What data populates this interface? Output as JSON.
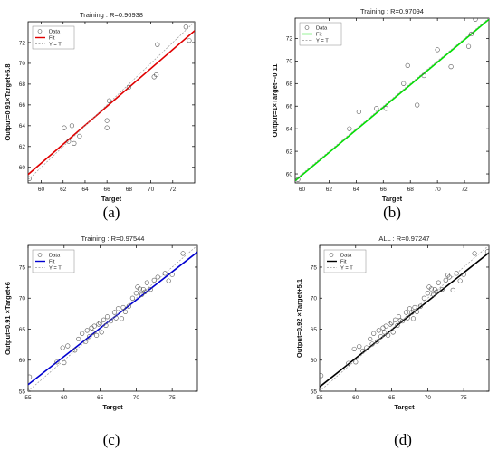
{
  "chart_data": [
    {
      "type": "scatter",
      "panel_label": "(a)",
      "title": "Training : R=0.96938",
      "xlabel": "Target",
      "ylabel": "Output=0.91×Target+5.8",
      "xlim": [
        58.8,
        74.0
      ],
      "ylim": [
        58.5,
        74.0
      ],
      "xticks": [
        60,
        62,
        64,
        66,
        68,
        70,
        72
      ],
      "yticks": [
        60,
        62,
        64,
        66,
        68,
        70,
        72
      ],
      "grid": false,
      "legend_position": "top-left",
      "series": [
        {
          "name": "Data",
          "kind": "points",
          "color": "#555555",
          "x": [
            58.9,
            62.1,
            62.5,
            62.8,
            63.0,
            63.5,
            66.0,
            66.0,
            66.2,
            68.0,
            70.3,
            70.5,
            70.6,
            73.2,
            73.5
          ],
          "y": [
            58.9,
            63.8,
            62.5,
            64.0,
            62.3,
            63.0,
            64.5,
            63.8,
            66.4,
            67.7,
            68.7,
            68.9,
            71.8,
            73.5,
            72.2
          ]
        },
        {
          "name": "Fit",
          "kind": "line",
          "color": "#e00000",
          "slope": 0.91,
          "intercept": 5.8
        },
        {
          "name": "Y = T",
          "kind": "line",
          "color": "#9a9a9a",
          "dashed": true,
          "slope": 1,
          "intercept": 0
        }
      ]
    },
    {
      "type": "scatter",
      "panel_label": "(b)",
      "title": "Training : R=0.97094",
      "xlabel": "Target",
      "ylabel": "Output=1×Target+-0.11",
      "xlim": [
        59.5,
        73.8
      ],
      "ylim": [
        59.2,
        73.8
      ],
      "xticks": [
        60,
        62,
        64,
        66,
        68,
        70,
        72
      ],
      "yticks": [
        60,
        62,
        64,
        66,
        68,
        70,
        72
      ],
      "grid": false,
      "legend_position": "top-left",
      "series": [
        {
          "name": "Data",
          "kind": "points",
          "color": "#555555",
          "x": [
            59.7,
            63.5,
            64.2,
            65.5,
            66.2,
            67.5,
            67.8,
            68.5,
            69.0,
            70.0,
            71.0,
            72.3,
            72.5,
            72.8
          ],
          "y": [
            59.5,
            64.0,
            65.5,
            65.8,
            65.8,
            68.0,
            69.6,
            66.1,
            68.7,
            71.0,
            69.5,
            71.3,
            72.4,
            73.7
          ]
        },
        {
          "name": "Fit",
          "kind": "line",
          "color": "#00e000",
          "slope": 1,
          "intercept": -0.11
        },
        {
          "name": "Y = T",
          "kind": "line",
          "color": "#9a9a9a",
          "dashed": true,
          "slope": 1,
          "intercept": 0
        }
      ]
    },
    {
      "type": "scatter",
      "panel_label": "(c)",
      "title": "Training : R=0.97544",
      "xlabel": "Target",
      "ylabel": "Output=0.91 ×Target+6",
      "xlim": [
        55,
        78.5
      ],
      "ylim": [
        55,
        78.5
      ],
      "xticks": [
        55,
        60,
        65,
        70,
        75
      ],
      "yticks": [
        55,
        60,
        65,
        70,
        75
      ],
      "grid": false,
      "legend_position": "top-left",
      "series": [
        {
          "name": "Data",
          "kind": "points",
          "color": "#555555",
          "x": [
            55.2,
            59.0,
            59.8,
            60.0,
            60.5,
            61.5,
            62.0,
            62.5,
            63.0,
            63.2,
            63.5,
            63.8,
            64.0,
            64.2,
            64.5,
            64.8,
            65.0,
            65.2,
            65.5,
            65.8,
            66.0,
            66.5,
            67.0,
            67.2,
            67.5,
            68.0,
            68.2,
            68.5,
            69.0,
            69.5,
            70.0,
            70.2,
            70.5,
            70.8,
            71.0,
            71.2,
            71.5,
            72.0,
            72.5,
            73.0,
            74.0,
            74.5,
            75.0,
            76.5
          ],
          "y": [
            57.3,
            59.7,
            62.0,
            59.6,
            62.3,
            61.6,
            63.4,
            64.3,
            63.0,
            64.8,
            63.8,
            65.2,
            64.5,
            65.5,
            64.0,
            65.8,
            66.0,
            64.5,
            66.5,
            65.6,
            67.0,
            66.3,
            67.7,
            66.8,
            68.3,
            66.7,
            68.5,
            67.8,
            68.7,
            70.0,
            70.8,
            71.8,
            71.5,
            70.6,
            71.4,
            71.0,
            72.5,
            71.4,
            72.9,
            73.4,
            74.0,
            72.8,
            73.8,
            77.2
          ]
        },
        {
          "name": "Fit",
          "kind": "line",
          "color": "#0000d0",
          "slope": 0.91,
          "intercept": 6
        },
        {
          "name": "Y = T",
          "kind": "line",
          "color": "#9a9a9a",
          "dashed": true,
          "slope": 1,
          "intercept": 0
        }
      ]
    },
    {
      "type": "scatter",
      "panel_label": "(d)",
      "title": "ALL : R=0.97247",
      "xlabel": "Target",
      "ylabel": "Output=0.92 ×Target+5.1",
      "xlim": [
        55,
        78.5
      ],
      "ylim": [
        55,
        78.5
      ],
      "xticks": [
        55,
        60,
        65,
        70,
        75
      ],
      "yticks": [
        55,
        60,
        65,
        70,
        75
      ],
      "grid": false,
      "legend_position": "top-left",
      "series": [
        {
          "name": "Data",
          "kind": "points",
          "color": "#555555",
          "x": [
            55.2,
            59.0,
            59.8,
            60.0,
            60.5,
            61.0,
            61.5,
            62.0,
            62.3,
            62.5,
            63.0,
            63.2,
            63.5,
            63.8,
            64.0,
            64.2,
            64.5,
            64.8,
            65.0,
            65.2,
            65.5,
            65.8,
            66.0,
            66.2,
            66.5,
            67.0,
            67.2,
            67.5,
            67.8,
            68.0,
            68.2,
            68.5,
            69.0,
            69.5,
            70.0,
            70.2,
            70.5,
            70.8,
            71.0,
            71.2,
            71.5,
            72.0,
            72.5,
            72.8,
            73.0,
            73.5,
            74.0,
            74.5,
            75.0,
            76.5,
            78.3
          ],
          "y": [
            57.5,
            59.5,
            61.8,
            59.7,
            62.2,
            61.5,
            62.0,
            63.4,
            62.6,
            64.3,
            63.0,
            64.8,
            63.8,
            65.2,
            64.5,
            65.5,
            64.0,
            65.8,
            66.0,
            64.5,
            66.5,
            65.6,
            67.0,
            66.4,
            66.3,
            67.7,
            66.8,
            68.3,
            67.7,
            66.7,
            68.5,
            67.8,
            68.7,
            70.0,
            70.8,
            71.8,
            71.5,
            70.6,
            71.4,
            71.0,
            72.5,
            71.4,
            72.9,
            73.7,
            73.4,
            71.3,
            74.0,
            72.8,
            73.8,
            77.2,
            77.5
          ]
        },
        {
          "name": "Fit",
          "kind": "line",
          "color": "#000000",
          "slope": 0.92,
          "intercept": 5.1
        },
        {
          "name": "Y = T",
          "kind": "line",
          "color": "#9a9a9a",
          "dashed": true,
          "slope": 1,
          "intercept": 0
        }
      ]
    }
  ]
}
